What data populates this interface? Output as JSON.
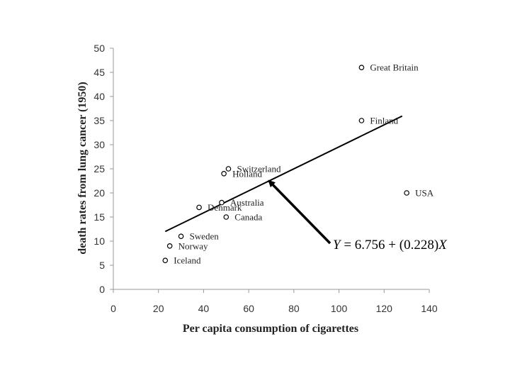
{
  "chart_data": {
    "type": "scatter",
    "xlabel": "Per capita consumption of cigarettes",
    "ylabel": "death rates from lung cancer (1950)",
    "xlim": [
      0,
      140
    ],
    "ylim": [
      0,
      50
    ],
    "xticks": [
      0,
      20,
      40,
      60,
      80,
      100,
      120,
      140
    ],
    "yticks": [
      0,
      5,
      10,
      15,
      20,
      25,
      30,
      35,
      40,
      45,
      50
    ],
    "grid": false,
    "points": [
      {
        "label": "Iceland",
        "x": 23,
        "y": 6
      },
      {
        "label": "Norway",
        "x": 25,
        "y": 9
      },
      {
        "label": "Sweden",
        "x": 30,
        "y": 11
      },
      {
        "label": "Denmark",
        "x": 38,
        "y": 17
      },
      {
        "label": "Australia",
        "x": 48,
        "y": 18
      },
      {
        "label": "Canada",
        "x": 50,
        "y": 15
      },
      {
        "label": "Holland",
        "x": 49,
        "y": 24
      },
      {
        "label": "Switzerland",
        "x": 51,
        "y": 25
      },
      {
        "label": "Finland",
        "x": 110,
        "y": 35
      },
      {
        "label": "Great Britain",
        "x": 110,
        "y": 46
      },
      {
        "label": "USA",
        "x": 130,
        "y": 20
      }
    ],
    "regression_line": {
      "x_start": 23,
      "x_end": 128,
      "intercept": 6.756,
      "slope": 0.228
    },
    "annotation": {
      "text_parts": [
        "Y",
        " = 6.756 + (0.228)",
        "X"
      ],
      "arrow_to": {
        "x": 69,
        "y": 22.5
      }
    }
  }
}
